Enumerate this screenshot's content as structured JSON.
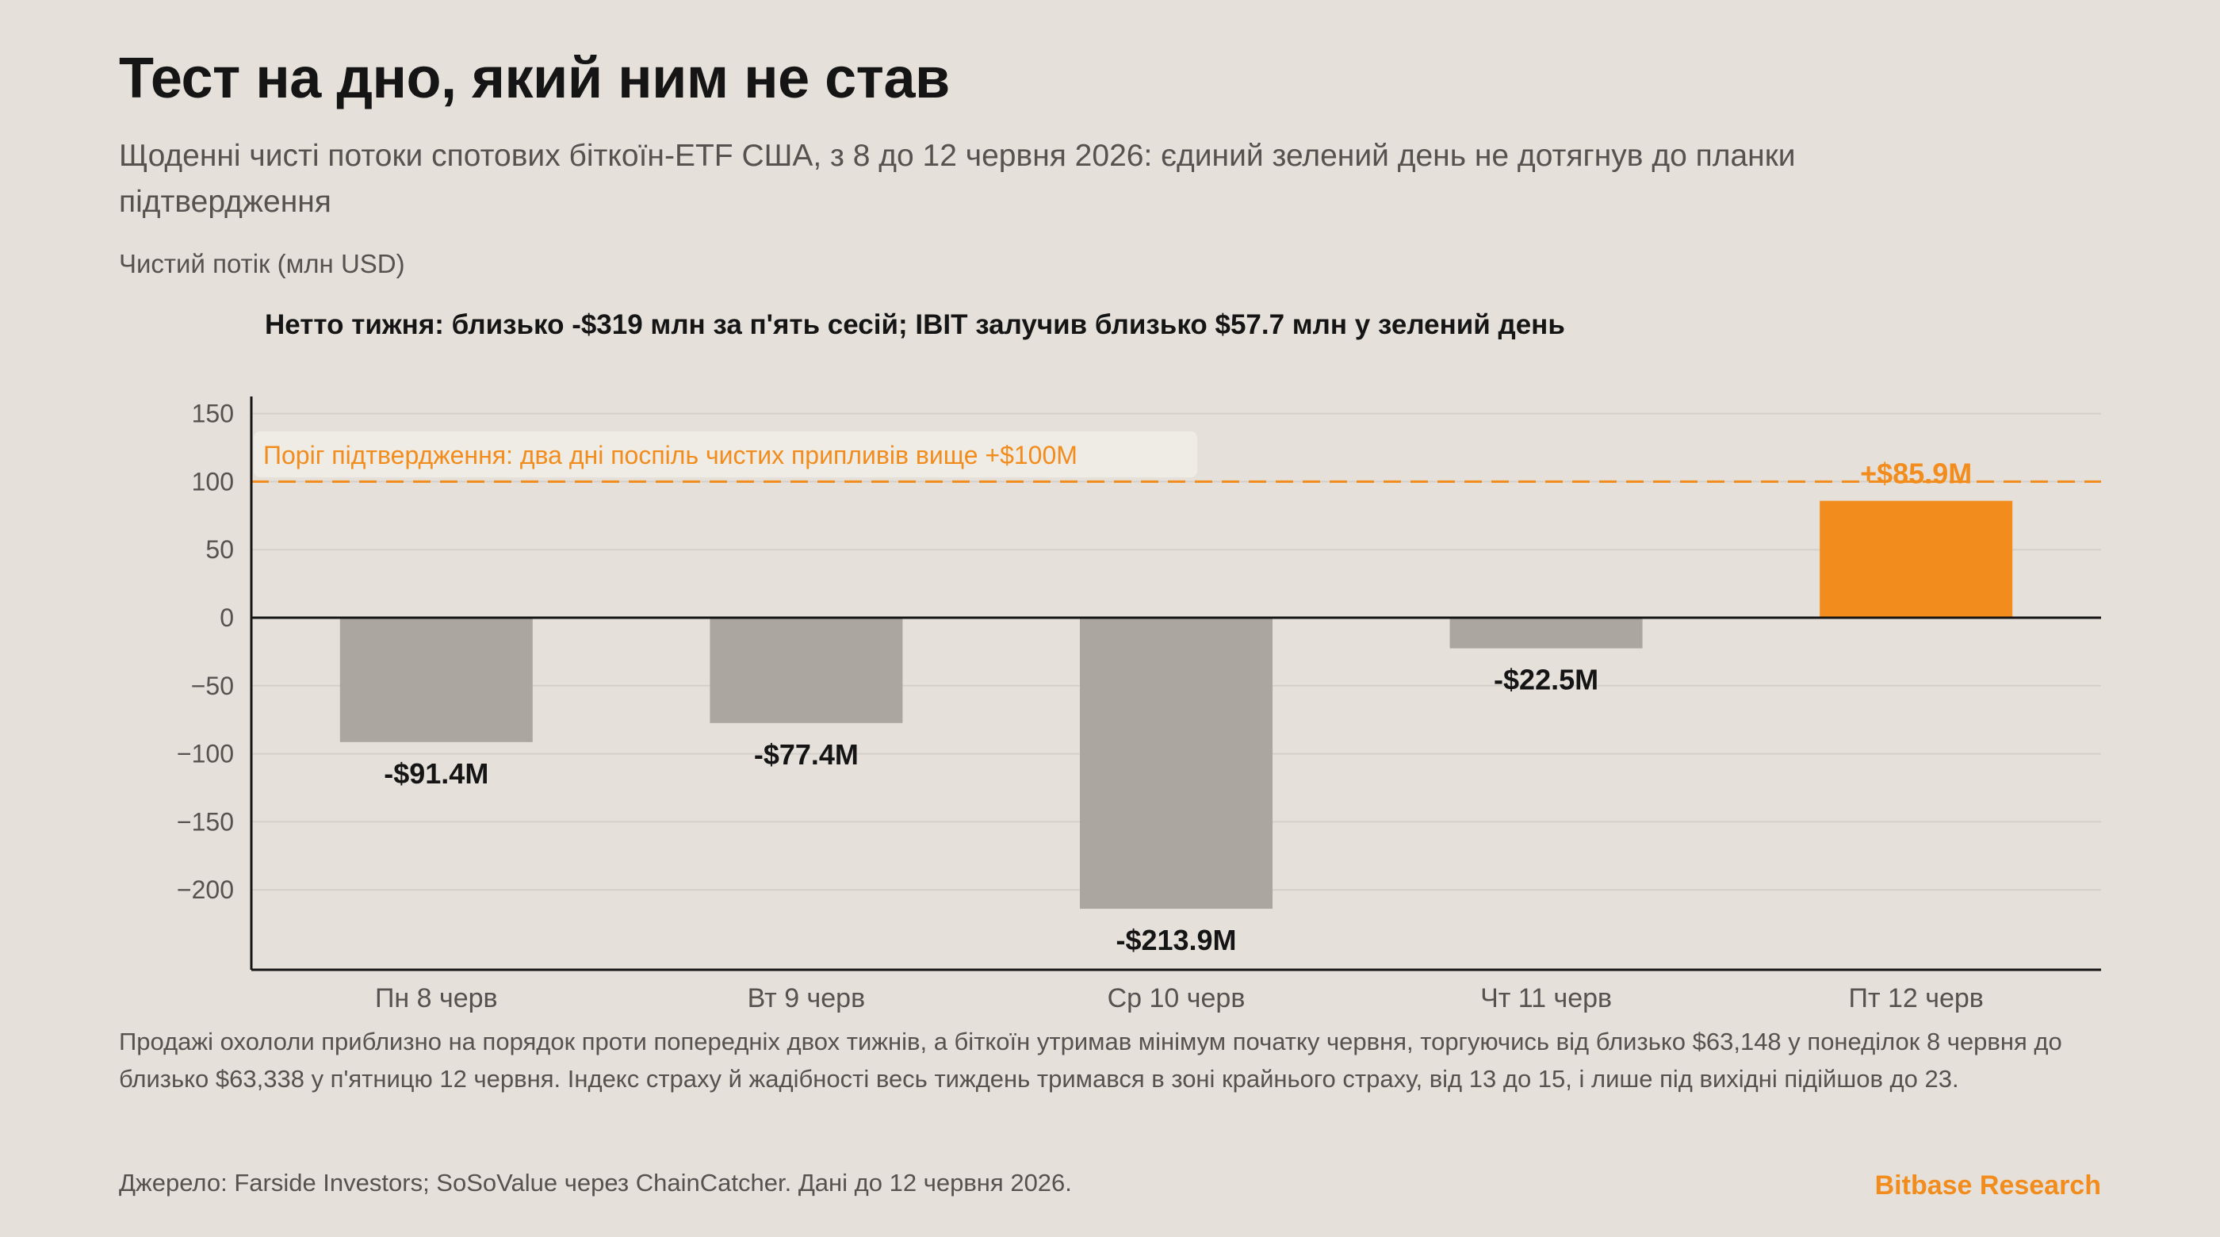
{
  "title": "Тест на дно, який ним не став",
  "subtitle": "Щоденні чисті потоки спотових біткоїн-ETF США, з 8 до 12 червня 2026: єдиний зелений день не дотягнув до планки підтвердження",
  "note": "Продажі охололи приблизно на порядок проти попередніх двох тижнів, а біткоїн утримав мінімум початку червня, торгуючись від близько $63,148 у понеділок 8 червня до близько $63,338 у п'ятницю 12 червня. Індекс страху й жадібності весь тиждень тримався в зоні крайнього страху, від 13 до 15, і лише під вихідні підійшов до 23.",
  "source": "Джерело: Farside Investors; SoSoValue через ChainCatcher. Дані до 12 червня 2026.",
  "brand": "Bitbase Research",
  "colors": {
    "background": "#e5e0da",
    "negative_bar": "#aba6a0",
    "positive_bar": "#f28c1c",
    "threshold": "#f28c1c",
    "axis": "#151515",
    "grid": "#d4cfc9"
  },
  "chart_data": {
    "type": "bar",
    "ylabel": "Чистий потік (млн USD)",
    "headline": "Нетто тижня: близько -$319 млн за п'ять сесій; IBIT залучив близько $57.7 млн у зелений день",
    "categories": [
      "Пн 8 черв",
      "Вт 9 черв",
      "Ср 10 черв",
      "Чт 11 черв",
      "Пт 12 черв"
    ],
    "values": [
      -91.4,
      -77.4,
      -213.9,
      -22.5,
      85.9
    ],
    "value_labels": [
      "-$91.4M",
      "-$77.4M",
      "-$213.9M",
      "-$22.5M",
      "+$85.9M"
    ],
    "ylim": [
      -260,
      160
    ],
    "yticks": [
      150,
      100,
      50,
      0,
      -50,
      -100,
      -150,
      -200
    ],
    "grid": true,
    "threshold": {
      "value": 100,
      "label": "Поріг підтвердження: два дні поспіль чистих припливів вище +$100M"
    }
  }
}
